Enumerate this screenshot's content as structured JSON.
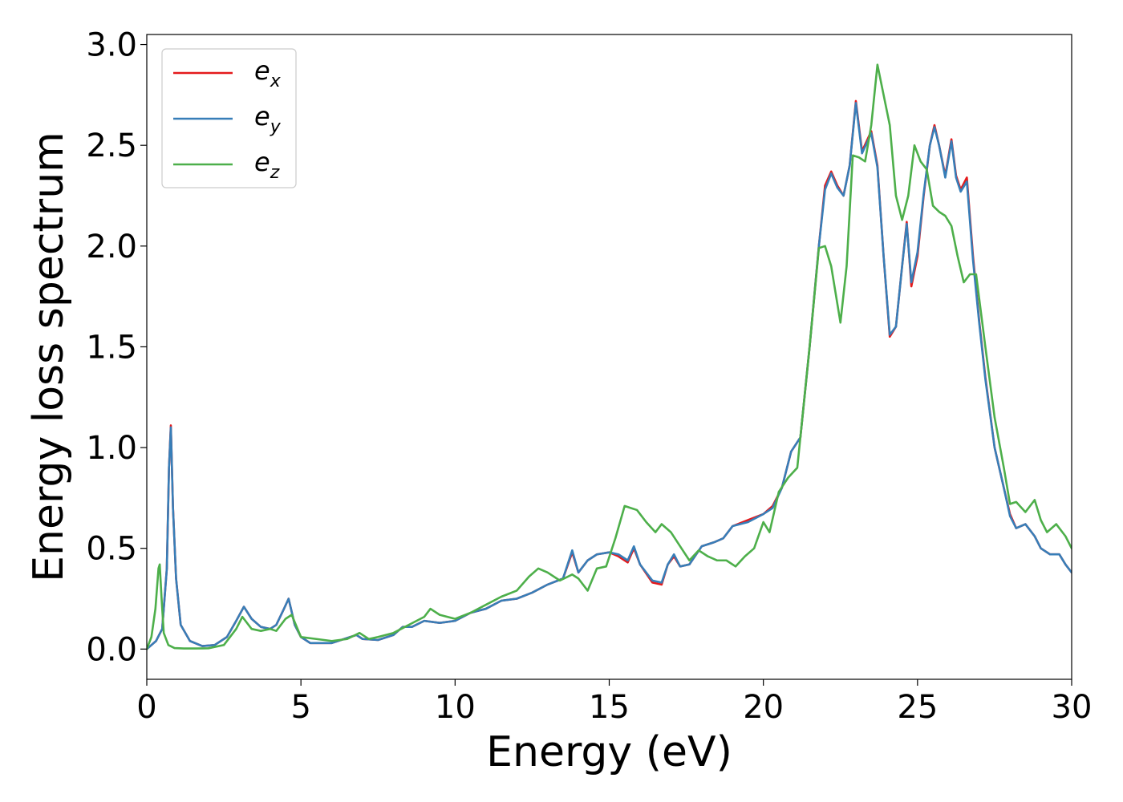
{
  "chart_data": {
    "type": "line",
    "xlabel": "Energy (eV)",
    "ylabel": "Energy loss spectrum",
    "xlim": [
      0,
      30
    ],
    "ylim": [
      -0.15,
      3.05
    ],
    "xticks": [
      0,
      5,
      10,
      15,
      20,
      25,
      30
    ],
    "yticks": [
      0.0,
      0.5,
      1.0,
      1.5,
      2.0,
      2.5,
      3.0
    ],
    "xtick_labels": [
      "0",
      "5",
      "10",
      "15",
      "20",
      "25",
      "30"
    ],
    "ytick_labels": [
      "0.0",
      "0.5",
      "1.0",
      "1.5",
      "2.0",
      "2.5",
      "3.0"
    ],
    "grid": false,
    "legend_position": "top-left",
    "series": [
      {
        "name": "e",
        "subscript": "x",
        "color": "#e41a1c",
        "x": [
          0,
          0.3,
          0.5,
          0.65,
          0.72,
          0.78,
          0.85,
          0.95,
          1.1,
          1.4,
          1.8,
          2.2,
          2.6,
          2.9,
          3.15,
          3.4,
          3.7,
          4.0,
          4.2,
          4.45,
          4.6,
          4.8,
          5.0,
          5.3,
          6.0,
          6.6,
          6.8,
          7.0,
          7.5,
          8.0,
          8.3,
          8.6,
          9.0,
          9.5,
          10.0,
          10.5,
          11.0,
          11.5,
          12.0,
          12.5,
          13.0,
          13.5,
          13.8,
          14.0,
          14.3,
          14.6,
          15.0,
          15.3,
          15.6,
          15.8,
          16.0,
          16.4,
          16.7,
          16.9,
          17.1,
          17.3,
          17.6,
          18.0,
          18.4,
          18.7,
          19.0,
          19.5,
          20.0,
          20.3,
          20.6,
          20.9,
          21.2,
          21.5,
          21.8,
          22.0,
          22.2,
          22.4,
          22.6,
          22.8,
          23.0,
          23.2,
          23.5,
          23.7,
          23.9,
          24.1,
          24.3,
          24.5,
          24.65,
          24.8,
          25.0,
          25.2,
          25.4,
          25.55,
          25.7,
          25.9,
          26.1,
          26.25,
          26.4,
          26.6,
          26.8,
          27.0,
          27.2,
          27.5,
          27.8,
          28.0,
          28.2,
          28.5,
          28.8,
          29.0,
          29.3,
          29.6,
          29.8,
          30.0
        ],
        "y": [
          0.0,
          0.04,
          0.1,
          0.4,
          0.9,
          1.11,
          0.7,
          0.35,
          0.12,
          0.04,
          0.015,
          0.02,
          0.06,
          0.14,
          0.21,
          0.15,
          0.11,
          0.1,
          0.12,
          0.2,
          0.25,
          0.12,
          0.06,
          0.03,
          0.03,
          0.06,
          0.07,
          0.05,
          0.045,
          0.07,
          0.11,
          0.11,
          0.14,
          0.13,
          0.14,
          0.18,
          0.2,
          0.24,
          0.25,
          0.28,
          0.32,
          0.35,
          0.48,
          0.38,
          0.44,
          0.47,
          0.48,
          0.46,
          0.43,
          0.5,
          0.42,
          0.33,
          0.32,
          0.42,
          0.46,
          0.41,
          0.42,
          0.51,
          0.53,
          0.55,
          0.61,
          0.64,
          0.67,
          0.71,
          0.8,
          0.98,
          1.05,
          1.5,
          2.0,
          2.3,
          2.37,
          2.3,
          2.25,
          2.4,
          2.72,
          2.47,
          2.57,
          2.4,
          1.95,
          1.55,
          1.6,
          1.9,
          2.12,
          1.8,
          1.95,
          2.25,
          2.5,
          2.6,
          2.5,
          2.35,
          2.53,
          2.35,
          2.28,
          2.34,
          1.95,
          1.63,
          1.35,
          1.0,
          0.8,
          0.67,
          0.6,
          0.62,
          0.56,
          0.5,
          0.47,
          0.47,
          0.42,
          0.38
        ]
      },
      {
        "name": "e",
        "subscript": "y",
        "color": "#377eb8",
        "x": [
          0,
          0.3,
          0.5,
          0.65,
          0.72,
          0.78,
          0.85,
          0.95,
          1.1,
          1.4,
          1.8,
          2.2,
          2.6,
          2.9,
          3.15,
          3.4,
          3.7,
          4.0,
          4.2,
          4.45,
          4.6,
          4.8,
          5.0,
          5.3,
          6.0,
          6.6,
          6.8,
          7.0,
          7.5,
          8.0,
          8.3,
          8.6,
          9.0,
          9.5,
          10.0,
          10.5,
          11.0,
          11.5,
          12.0,
          12.5,
          13.0,
          13.5,
          13.8,
          14.0,
          14.3,
          14.6,
          15.0,
          15.3,
          15.6,
          15.8,
          16.0,
          16.4,
          16.7,
          16.9,
          17.1,
          17.3,
          17.6,
          18.0,
          18.4,
          18.7,
          19.0,
          19.5,
          20.0,
          20.3,
          20.6,
          20.9,
          21.2,
          21.5,
          21.8,
          22.0,
          22.2,
          22.4,
          22.6,
          22.8,
          23.0,
          23.2,
          23.5,
          23.7,
          23.9,
          24.1,
          24.3,
          24.5,
          24.65,
          24.8,
          25.0,
          25.2,
          25.4,
          25.55,
          25.7,
          25.9,
          26.1,
          26.25,
          26.4,
          26.6,
          26.8,
          27.0,
          27.2,
          27.5,
          27.8,
          28.0,
          28.2,
          28.5,
          28.8,
          29.0,
          29.3,
          29.6,
          29.8,
          30.0
        ],
        "y": [
          0.0,
          0.04,
          0.1,
          0.4,
          0.9,
          1.1,
          0.7,
          0.35,
          0.12,
          0.04,
          0.015,
          0.02,
          0.06,
          0.14,
          0.21,
          0.15,
          0.11,
          0.1,
          0.12,
          0.2,
          0.25,
          0.12,
          0.06,
          0.03,
          0.03,
          0.06,
          0.07,
          0.05,
          0.045,
          0.07,
          0.11,
          0.11,
          0.14,
          0.13,
          0.14,
          0.18,
          0.2,
          0.24,
          0.25,
          0.28,
          0.32,
          0.35,
          0.49,
          0.38,
          0.44,
          0.47,
          0.48,
          0.47,
          0.44,
          0.51,
          0.42,
          0.34,
          0.33,
          0.42,
          0.47,
          0.41,
          0.42,
          0.51,
          0.53,
          0.55,
          0.61,
          0.63,
          0.67,
          0.7,
          0.8,
          0.98,
          1.05,
          1.5,
          2.0,
          2.28,
          2.36,
          2.29,
          2.25,
          2.4,
          2.71,
          2.46,
          2.56,
          2.39,
          1.95,
          1.56,
          1.6,
          1.9,
          2.11,
          1.82,
          1.97,
          2.26,
          2.5,
          2.59,
          2.5,
          2.34,
          2.52,
          2.34,
          2.27,
          2.32,
          1.93,
          1.62,
          1.34,
          1.0,
          0.8,
          0.66,
          0.6,
          0.62,
          0.56,
          0.5,
          0.47,
          0.47,
          0.42,
          0.38
        ]
      },
      {
        "name": "e",
        "subscript": "z",
        "color": "#4daf4a",
        "x": [
          0,
          0.15,
          0.28,
          0.38,
          0.42,
          0.48,
          0.55,
          0.7,
          0.9,
          1.2,
          1.6,
          2.0,
          2.5,
          2.9,
          3.1,
          3.4,
          3.7,
          4.0,
          4.2,
          4.5,
          4.7,
          5.0,
          5.5,
          6.0,
          6.5,
          6.9,
          7.2,
          7.5,
          8.0,
          8.5,
          9.0,
          9.2,
          9.5,
          10.0,
          10.5,
          11.0,
          11.5,
          12.0,
          12.4,
          12.7,
          13.0,
          13.4,
          13.8,
          14.0,
          14.3,
          14.6,
          14.9,
          15.2,
          15.5,
          15.9,
          16.2,
          16.5,
          16.7,
          17.0,
          17.3,
          17.6,
          17.9,
          18.2,
          18.5,
          18.8,
          19.1,
          19.4,
          19.7,
          20.0,
          20.2,
          20.5,
          20.8,
          21.1,
          21.5,
          21.8,
          22.0,
          22.2,
          22.5,
          22.7,
          22.9,
          23.1,
          23.3,
          23.5,
          23.7,
          23.9,
          24.1,
          24.3,
          24.5,
          24.7,
          24.9,
          25.1,
          25.3,
          25.5,
          25.7,
          25.9,
          26.1,
          26.3,
          26.5,
          26.7,
          26.9,
          27.2,
          27.5,
          27.8,
          28.0,
          28.2,
          28.5,
          28.8,
          29.0,
          29.2,
          29.5,
          29.8,
          30.0
        ],
        "y": [
          0.0,
          0.06,
          0.2,
          0.4,
          0.42,
          0.25,
          0.08,
          0.02,
          0.005,
          0.003,
          0.003,
          0.004,
          0.02,
          0.1,
          0.16,
          0.1,
          0.09,
          0.1,
          0.09,
          0.15,
          0.17,
          0.06,
          0.05,
          0.04,
          0.05,
          0.08,
          0.05,
          0.06,
          0.08,
          0.12,
          0.16,
          0.2,
          0.17,
          0.15,
          0.18,
          0.22,
          0.26,
          0.29,
          0.36,
          0.4,
          0.38,
          0.34,
          0.37,
          0.35,
          0.29,
          0.4,
          0.41,
          0.55,
          0.71,
          0.69,
          0.63,
          0.58,
          0.62,
          0.58,
          0.51,
          0.44,
          0.49,
          0.46,
          0.44,
          0.44,
          0.41,
          0.46,
          0.5,
          0.63,
          0.58,
          0.78,
          0.85,
          0.9,
          1.5,
          1.99,
          2.0,
          1.9,
          1.62,
          1.9,
          2.45,
          2.44,
          2.42,
          2.6,
          2.9,
          2.75,
          2.6,
          2.25,
          2.13,
          2.25,
          2.5,
          2.42,
          2.38,
          2.2,
          2.17,
          2.15,
          2.1,
          1.95,
          1.82,
          1.86,
          1.86,
          1.5,
          1.15,
          0.9,
          0.72,
          0.73,
          0.68,
          0.74,
          0.64,
          0.58,
          0.62,
          0.56,
          0.5
        ]
      }
    ]
  }
}
